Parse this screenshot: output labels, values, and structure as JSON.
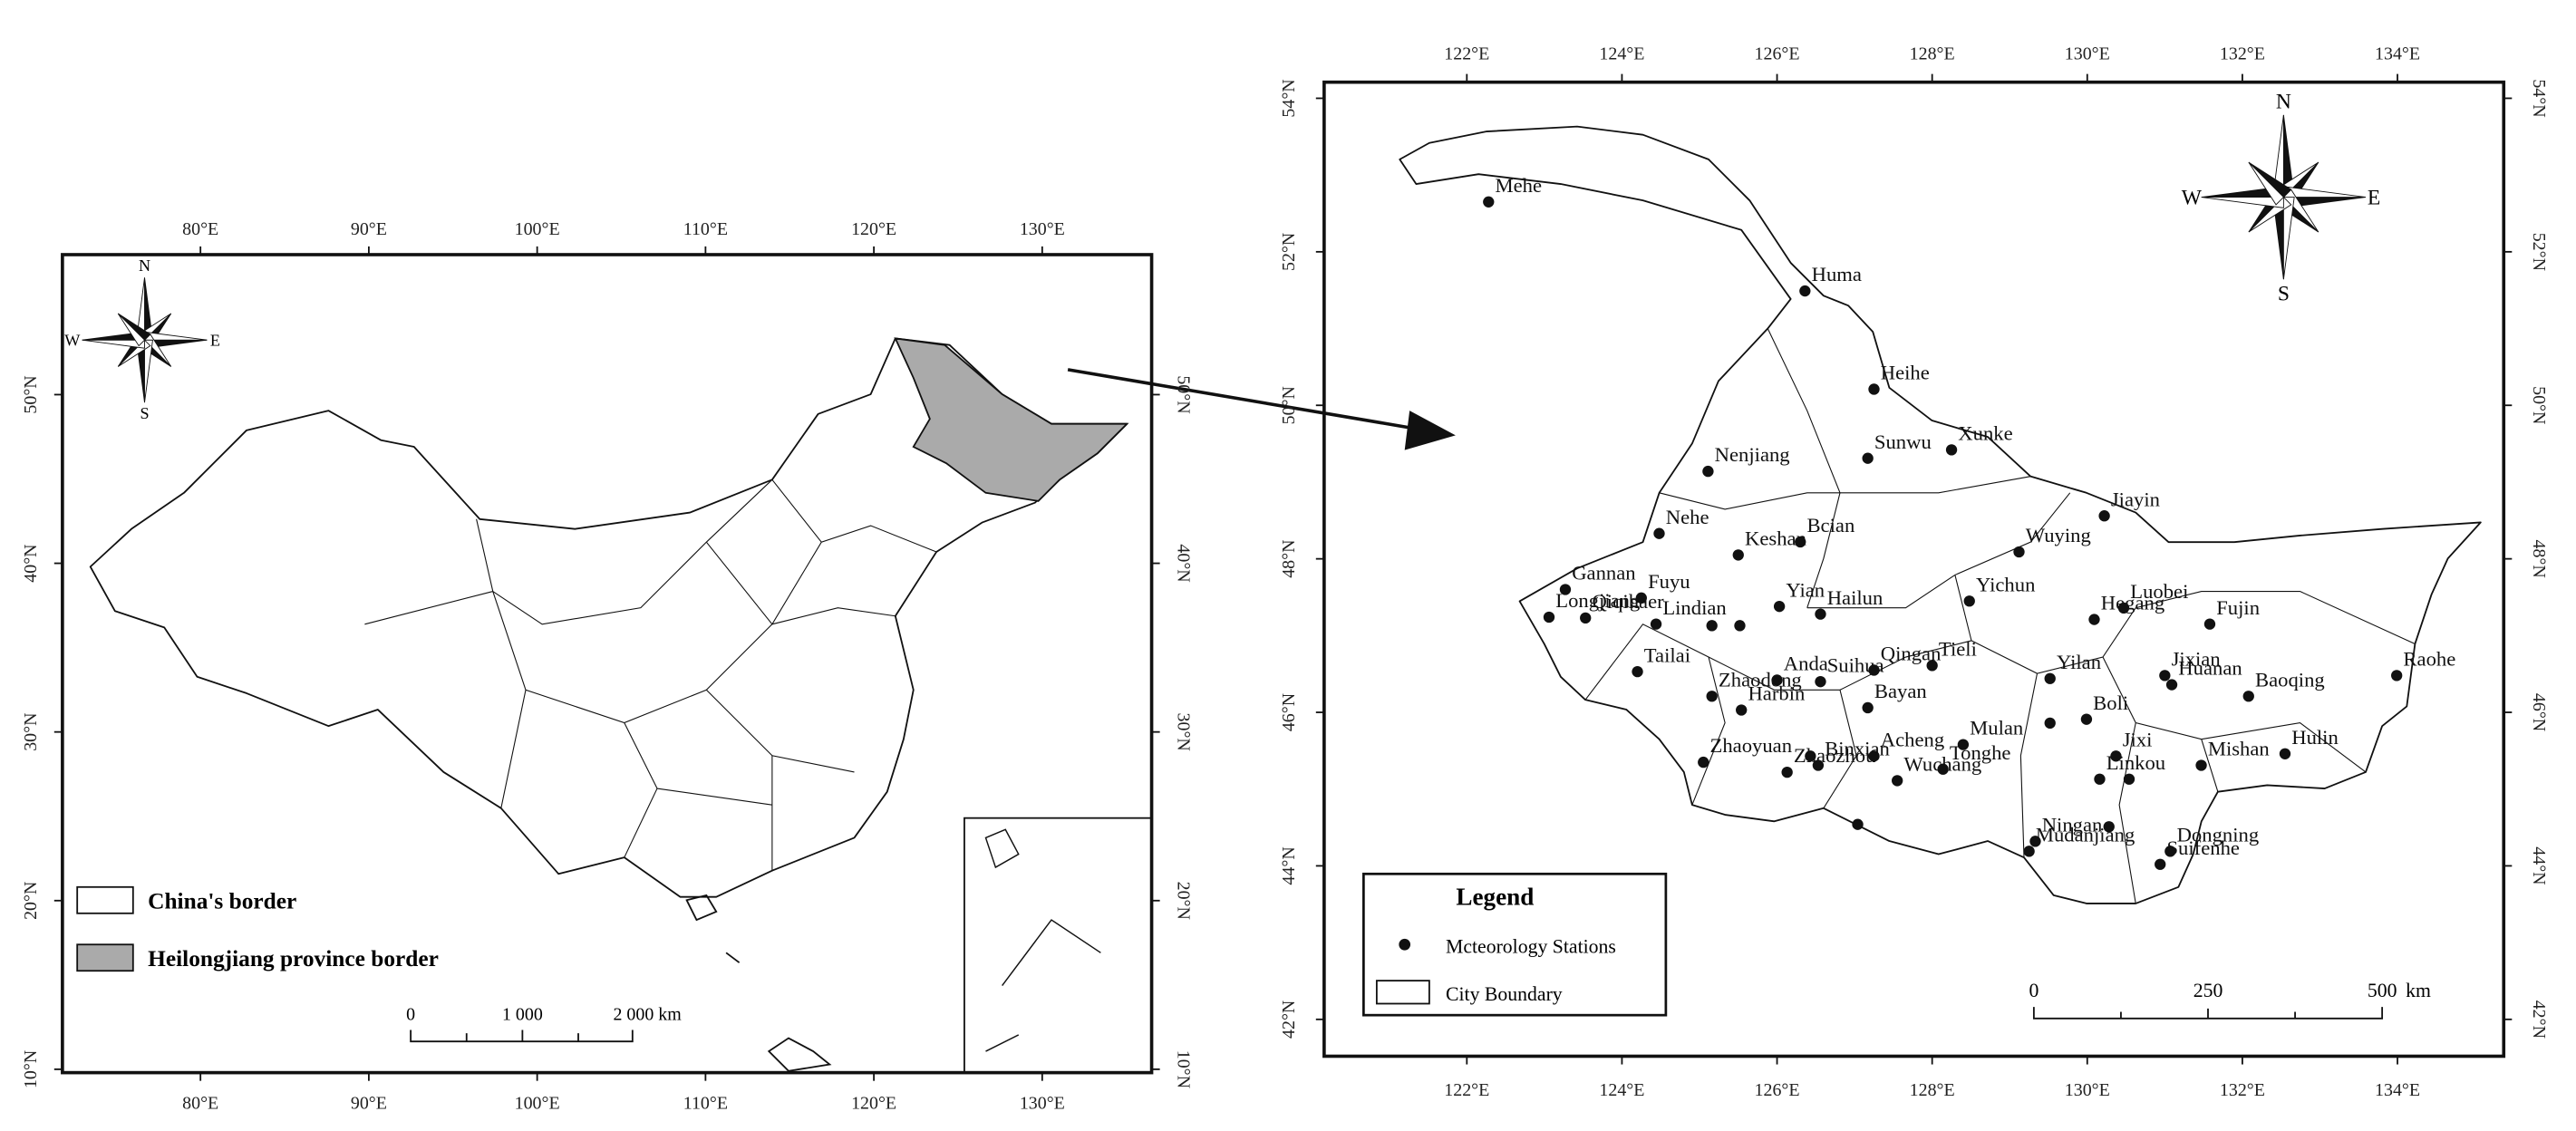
{
  "left_map": {
    "xlim": [
      71.8,
      136.5
    ],
    "ylim": [
      9.8,
      58.3
    ],
    "xticks": [
      {
        "value": 80,
        "label": "80°E"
      },
      {
        "value": 90,
        "label": "90°E"
      },
      {
        "value": 100,
        "label": "100°E"
      },
      {
        "value": 110,
        "label": "110°E"
      },
      {
        "value": 120,
        "label": "120°E"
      },
      {
        "value": 130,
        "label": "130°E"
      }
    ],
    "yticks": [
      {
        "value": 10,
        "label": "10°N"
      },
      {
        "value": 20,
        "label": "20°N"
      },
      {
        "value": 30,
        "label": "30°N"
      },
      {
        "value": 40,
        "label": "40°N"
      },
      {
        "value": 50,
        "label": "50°N"
      }
    ],
    "compass": {
      "n": "N",
      "s": "S",
      "e": "E",
      "w": "W"
    },
    "legend": [
      "China's border",
      "Heilongjiang province border"
    ],
    "scale_bar": [
      "0",
      "1 000",
      "2 000 km"
    ]
  },
  "right_map": {
    "xlim": [
      120.16,
      135.37
    ],
    "ylim": [
      41.52,
      54.21
    ],
    "xticks": [
      {
        "value": 122,
        "label": "122°E"
      },
      {
        "value": 124,
        "label": "124°E"
      },
      {
        "value": 126,
        "label": "126°E"
      },
      {
        "value": 128,
        "label": "128°E"
      },
      {
        "value": 130,
        "label": "130°E"
      },
      {
        "value": 132,
        "label": "132°E"
      },
      {
        "value": 134,
        "label": "134°E"
      }
    ],
    "yticks": [
      {
        "value": 42,
        "label": "42°N"
      },
      {
        "value": 44,
        "label": "44°N"
      },
      {
        "value": 46,
        "label": "46°N"
      },
      {
        "value": 48,
        "label": "48°N"
      },
      {
        "value": 50,
        "label": "50°N"
      },
      {
        "value": 52,
        "label": "52°N"
      },
      {
        "value": 54,
        "label": "54°N"
      }
    ],
    "compass": {
      "n": "N",
      "s": "S",
      "e": "E",
      "w": "W"
    },
    "legend": {
      "title": "Legend",
      "items": [
        "Mcteorology Stations",
        "City Boundary"
      ]
    },
    "scale_bar": [
      "0",
      "250",
      "500",
      "km"
    ],
    "stations": [
      {
        "name": "Mehe",
        "lon": 122.28,
        "lat": 52.65
      },
      {
        "name": "Huma",
        "lon": 126.36,
        "lat": 51.49
      },
      {
        "name": "Heihe",
        "lon": 127.25,
        "lat": 50.21
      },
      {
        "name": "Sunwu",
        "lon": 127.17,
        "lat": 49.31
      },
      {
        "name": "Xunke",
        "lon": 128.25,
        "lat": 49.42
      },
      {
        "name": "Nenjiang",
        "lon": 125.11,
        "lat": 49.14
      },
      {
        "name": "Jiayin",
        "lon": 130.22,
        "lat": 48.56
      },
      {
        "name": "Nehe",
        "lon": 124.48,
        "lat": 48.33
      },
      {
        "name": "Bcian",
        "lon": 126.3,
        "lat": 48.22
      },
      {
        "name": "Keshan",
        "lon": 125.5,
        "lat": 48.05
      },
      {
        "name": "Wuying",
        "lon": 129.12,
        "lat": 48.09
      },
      {
        "name": "Gannan",
        "lon": 123.27,
        "lat": 47.6
      },
      {
        "name": "Fuyu",
        "lon": 124.25,
        "lat": 47.49
      },
      {
        "name": "Longjiang",
        "lon": 123.06,
        "lat": 47.24
      },
      {
        "name": "Yichun",
        "lon": 128.48,
        "lat": 47.45
      },
      {
        "name": "Hegang",
        "lon": 130.09,
        "lat": 47.21
      },
      {
        "name": "Luobei",
        "lon": 130.47,
        "lat": 47.36
      },
      {
        "name": "Fujin",
        "lon": 131.58,
        "lat": 47.15
      },
      {
        "name": "Hailun",
        "lon": 126.56,
        "lat": 47.28
      },
      {
        "name": "Yian",
        "lon": 126.03,
        "lat": 47.38
      },
      {
        "name": "Qiqihaer",
        "lon": 123.53,
        "lat": 47.23
      },
      {
        "name": "Lindian",
        "lon": 124.44,
        "lat": 47.15
      },
      {
        "name": "Tailai",
        "lon": 124.2,
        "lat": 46.53
      },
      {
        "name": "Anda",
        "lon": 126.0,
        "lat": 46.42
      },
      {
        "name": "Suihua",
        "lon": 126.56,
        "lat": 46.4
      },
      {
        "name": "Qingan",
        "lon": 127.25,
        "lat": 46.55
      },
      {
        "name": "Tieli",
        "lon": 128.0,
        "lat": 46.61
      },
      {
        "name": "Bayan",
        "lon": 127.17,
        "lat": 46.06
      },
      {
        "name": "Yilan",
        "lon": 129.52,
        "lat": 46.44
      },
      {
        "name": "Jixian",
        "lon": 131.0,
        "lat": 46.48
      },
      {
        "name": "Huanan",
        "lon": 131.09,
        "lat": 46.36
      },
      {
        "name": "Baoqing",
        "lon": 132.08,
        "lat": 46.21
      },
      {
        "name": "Raohe",
        "lon": 133.99,
        "lat": 46.48
      },
      {
        "name": "Zhaodong",
        "lon": 125.16,
        "lat": 46.21
      },
      {
        "name": "Harbin",
        "lon": 125.54,
        "lat": 46.03
      },
      {
        "name": "Zhaoyuan",
        "lon": 125.05,
        "lat": 45.35
      },
      {
        "name": "Zhaozhou",
        "lon": 126.13,
        "lat": 45.22
      },
      {
        "name": "Binxian",
        "lon": 126.53,
        "lat": 45.31
      },
      {
        "name": "Acheng",
        "lon": 127.25,
        "lat": 45.43
      },
      {
        "name": "Wuchang",
        "lon": 127.55,
        "lat": 45.11
      },
      {
        "name": "Mulan",
        "lon": 128.4,
        "lat": 45.58
      },
      {
        "name": "Tonghe",
        "lon": 128.14,
        "lat": 45.26
      },
      {
        "name": "Boli",
        "lon": 129.99,
        "lat": 45.91
      },
      {
        "name": "Jixi",
        "lon": 130.37,
        "lat": 45.43
      },
      {
        "name": "Linkou",
        "lon": 130.16,
        "lat": 45.13
      },
      {
        "name": "Mishan",
        "lon": 131.47,
        "lat": 45.31
      },
      {
        "name": "Hulin",
        "lon": 132.55,
        "lat": 45.46
      },
      {
        "name": "Ningan",
        "lon": 129.33,
        "lat": 44.32
      },
      {
        "name": "Mudanjiang",
        "lon": 129.25,
        "lat": 44.19
      },
      {
        "name": "Dongning",
        "lon": 131.07,
        "lat": 44.19
      },
      {
        "name": "Suifenhe",
        "lon": 130.94,
        "lat": 44.02
      },
      {
        "name": null,
        "lon": 125.16,
        "lat": 47.13
      },
      {
        "name": null,
        "lon": 125.52,
        "lat": 47.13
      },
      {
        "name": null,
        "lon": 126.43,
        "lat": 45.43
      },
      {
        "name": null,
        "lon": 127.04,
        "lat": 44.54
      },
      {
        "name": null,
        "lon": 130.28,
        "lat": 44.51
      },
      {
        "name": null,
        "lon": 130.54,
        "lat": 45.13
      },
      {
        "name": null,
        "lon": 129.52,
        "lat": 45.86
      }
    ]
  }
}
